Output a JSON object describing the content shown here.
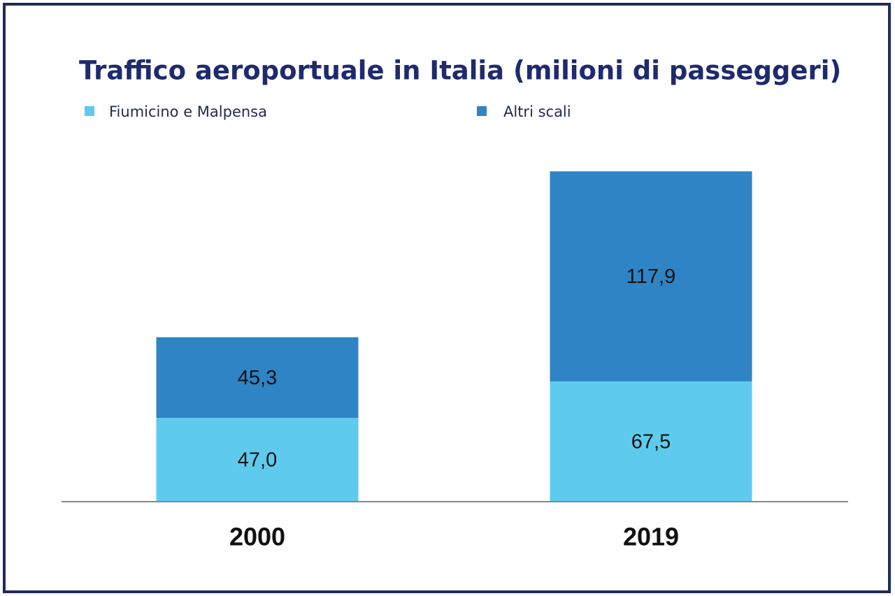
{
  "chart_data": {
    "type": "stacked-bar",
    "title": "Traffico aeroportuale in Italia (milioni di passeggeri)",
    "categories": [
      "2000",
      "2019"
    ],
    "series": [
      {
        "name": "Fiumicino e Malpensa",
        "color": "#5ecbee",
        "values": [
          47.0,
          67.5
        ],
        "value_labels": [
          "47,0",
          "67,5"
        ]
      },
      {
        "name": "Altri scali",
        "color": "#2e84c4",
        "values": [
          45.3,
          117.9
        ],
        "value_labels": [
          "45,3",
          "117,9"
        ]
      }
    ]
  }
}
